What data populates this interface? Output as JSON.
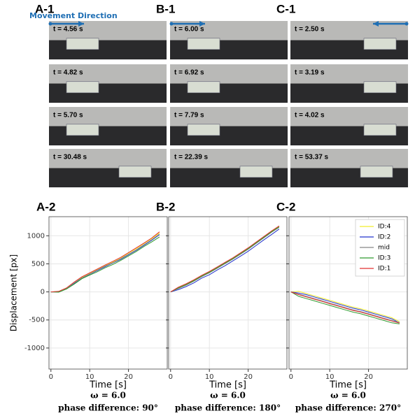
{
  "photos": [
    {
      "label": "A-1",
      "direction_label": "Movement Direction",
      "frames": [
        "t = 4.56 s",
        "t = 4.82 s",
        "t = 5.70 s",
        "t = 30.48 s"
      ]
    },
    {
      "label": "B-1",
      "frames": [
        "t = 6.00 s",
        "t = 6.92 s",
        "t = 7.79 s",
        "t = 22.39 s"
      ]
    },
    {
      "label": "C-1",
      "frames": [
        "t = 2.50 s",
        "t = 3.19 s",
        "t = 4.02 s",
        "t = 53.37 s"
      ]
    }
  ],
  "chart_data": [
    {
      "type": "line",
      "panel_label": "A-2",
      "xlabel": "Time [s]",
      "ylabel": "Displacement [px]",
      "annotations": [
        "ω = 6.0",
        "phase difference: 90°"
      ],
      "x": [
        0,
        2,
        4,
        6,
        8,
        10,
        12,
        14,
        16,
        18,
        20,
        22,
        24,
        26,
        28
      ],
      "xlim": [
        -0.5,
        30
      ],
      "ylim": [
        -1375,
        1340
      ],
      "xticks": [
        0,
        10,
        20
      ],
      "yticks": [
        -1000,
        -500,
        0,
        500,
        1000
      ],
      "show_ytick_labels": true,
      "grid": true,
      "legend": false,
      "series": [
        {
          "name": "ID:4",
          "color": "#f2ee2a",
          "values": [
            0,
            8,
            70,
            170,
            260,
            330,
            400,
            470,
            530,
            600,
            690,
            770,
            860,
            950,
            1050
          ]
        },
        {
          "name": "ID:2",
          "color": "#2233cc",
          "values": [
            0,
            0,
            55,
            150,
            245,
            315,
            380,
            450,
            515,
            580,
            660,
            740,
            830,
            920,
            1020
          ]
        },
        {
          "name": "mid",
          "color": "#888888",
          "values": [
            0,
            5,
            60,
            160,
            250,
            320,
            390,
            460,
            520,
            590,
            670,
            750,
            840,
            930,
            1030
          ]
        },
        {
          "name": "ID:3",
          "color": "#2e9a2e",
          "values": [
            0,
            -5,
            50,
            140,
            235,
            300,
            360,
            430,
            490,
            560,
            640,
            720,
            810,
            890,
            980
          ]
        },
        {
          "name": "ID:1",
          "color": "#e23030",
          "values": [
            0,
            10,
            70,
            175,
            270,
            340,
            410,
            480,
            545,
            615,
            700,
            785,
            870,
            960,
            1070
          ]
        }
      ]
    },
    {
      "type": "line",
      "panel_label": "B-2",
      "xlabel": "Time [s]",
      "annotations": [
        "ω = 6.0",
        "phase difference: 180°"
      ],
      "x": [
        0,
        2,
        4,
        6,
        8,
        10,
        12,
        14,
        16,
        18,
        20,
        22,
        24,
        26,
        28
      ],
      "xlim": [
        -0.5,
        30
      ],
      "ylim": [
        -1375,
        1340
      ],
      "xticks": [
        0,
        10,
        20
      ],
      "yticks": [
        -1000,
        -500,
        0,
        500,
        1000
      ],
      "show_ytick_labels": false,
      "grid": true,
      "legend": false,
      "series": [
        {
          "name": "ID:4",
          "color": "#f2ee2a",
          "values": [
            0,
            75,
            135,
            205,
            285,
            355,
            435,
            515,
            595,
            685,
            775,
            875,
            975,
            1075,
            1165
          ]
        },
        {
          "name": "ID:2",
          "color": "#2233cc",
          "values": [
            0,
            40,
            95,
            160,
            245,
            305,
            390,
            465,
            550,
            635,
            725,
            825,
            925,
            1020,
            1120
          ]
        },
        {
          "name": "mid",
          "color": "#888888",
          "values": [
            0,
            60,
            120,
            190,
            270,
            340,
            420,
            500,
            580,
            670,
            760,
            860,
            960,
            1060,
            1150
          ]
        },
        {
          "name": "ID:3",
          "color": "#2e9a2e",
          "values": [
            0,
            70,
            130,
            200,
            280,
            350,
            430,
            510,
            590,
            680,
            770,
            870,
            970,
            1070,
            1160
          ]
        },
        {
          "name": "ID:1",
          "color": "#e23030",
          "values": [
            0,
            85,
            145,
            215,
            295,
            365,
            445,
            525,
            605,
            695,
            785,
            885,
            985,
            1085,
            1175
          ]
        }
      ]
    },
    {
      "type": "line",
      "panel_label": "C-2",
      "xlabel": "Time [s]",
      "annotations": [
        "ω = 6.0",
        "phase difference: 270°"
      ],
      "x": [
        0,
        2,
        4,
        6,
        8,
        10,
        12,
        14,
        16,
        18,
        20,
        22,
        24,
        26,
        28
      ],
      "xlim": [
        -0.5,
        30
      ],
      "ylim": [
        -1375,
        1340
      ],
      "xticks": [
        0,
        10,
        20
      ],
      "yticks": [
        -1000,
        -500,
        0,
        500,
        1000
      ],
      "show_ytick_labels": false,
      "grid": true,
      "legend": true,
      "series": [
        {
          "name": "ID:4",
          "color": "#f2ee2a",
          "values": [
            0,
            10,
            -30,
            -70,
            -110,
            -150,
            -190,
            -230,
            -270,
            -300,
            -340,
            -380,
            -420,
            -460,
            -530
          ]
        },
        {
          "name": "ID:2",
          "color": "#2233cc",
          "values": [
            0,
            -20,
            -50,
            -90,
            -130,
            -170,
            -210,
            -250,
            -290,
            -320,
            -360,
            -400,
            -440,
            -480,
            -550
          ]
        },
        {
          "name": "mid",
          "color": "#888888",
          "values": [
            0,
            -40,
            -80,
            -120,
            -160,
            -200,
            -240,
            -280,
            -320,
            -350,
            -390,
            -430,
            -470,
            -510,
            -545
          ]
        },
        {
          "name": "ID:3",
          "color": "#2e9a2e",
          "values": [
            0,
            -80,
            -120,
            -160,
            -200,
            -240,
            -280,
            -320,
            -360,
            -390,
            -430,
            -470,
            -510,
            -550,
            -570
          ]
        },
        {
          "name": "ID:1",
          "color": "#e23030",
          "values": [
            0,
            -50,
            -90,
            -130,
            -170,
            -210,
            -250,
            -290,
            -330,
            -360,
            -400,
            -440,
            -480,
            -520,
            -555
          ]
        }
      ]
    }
  ]
}
